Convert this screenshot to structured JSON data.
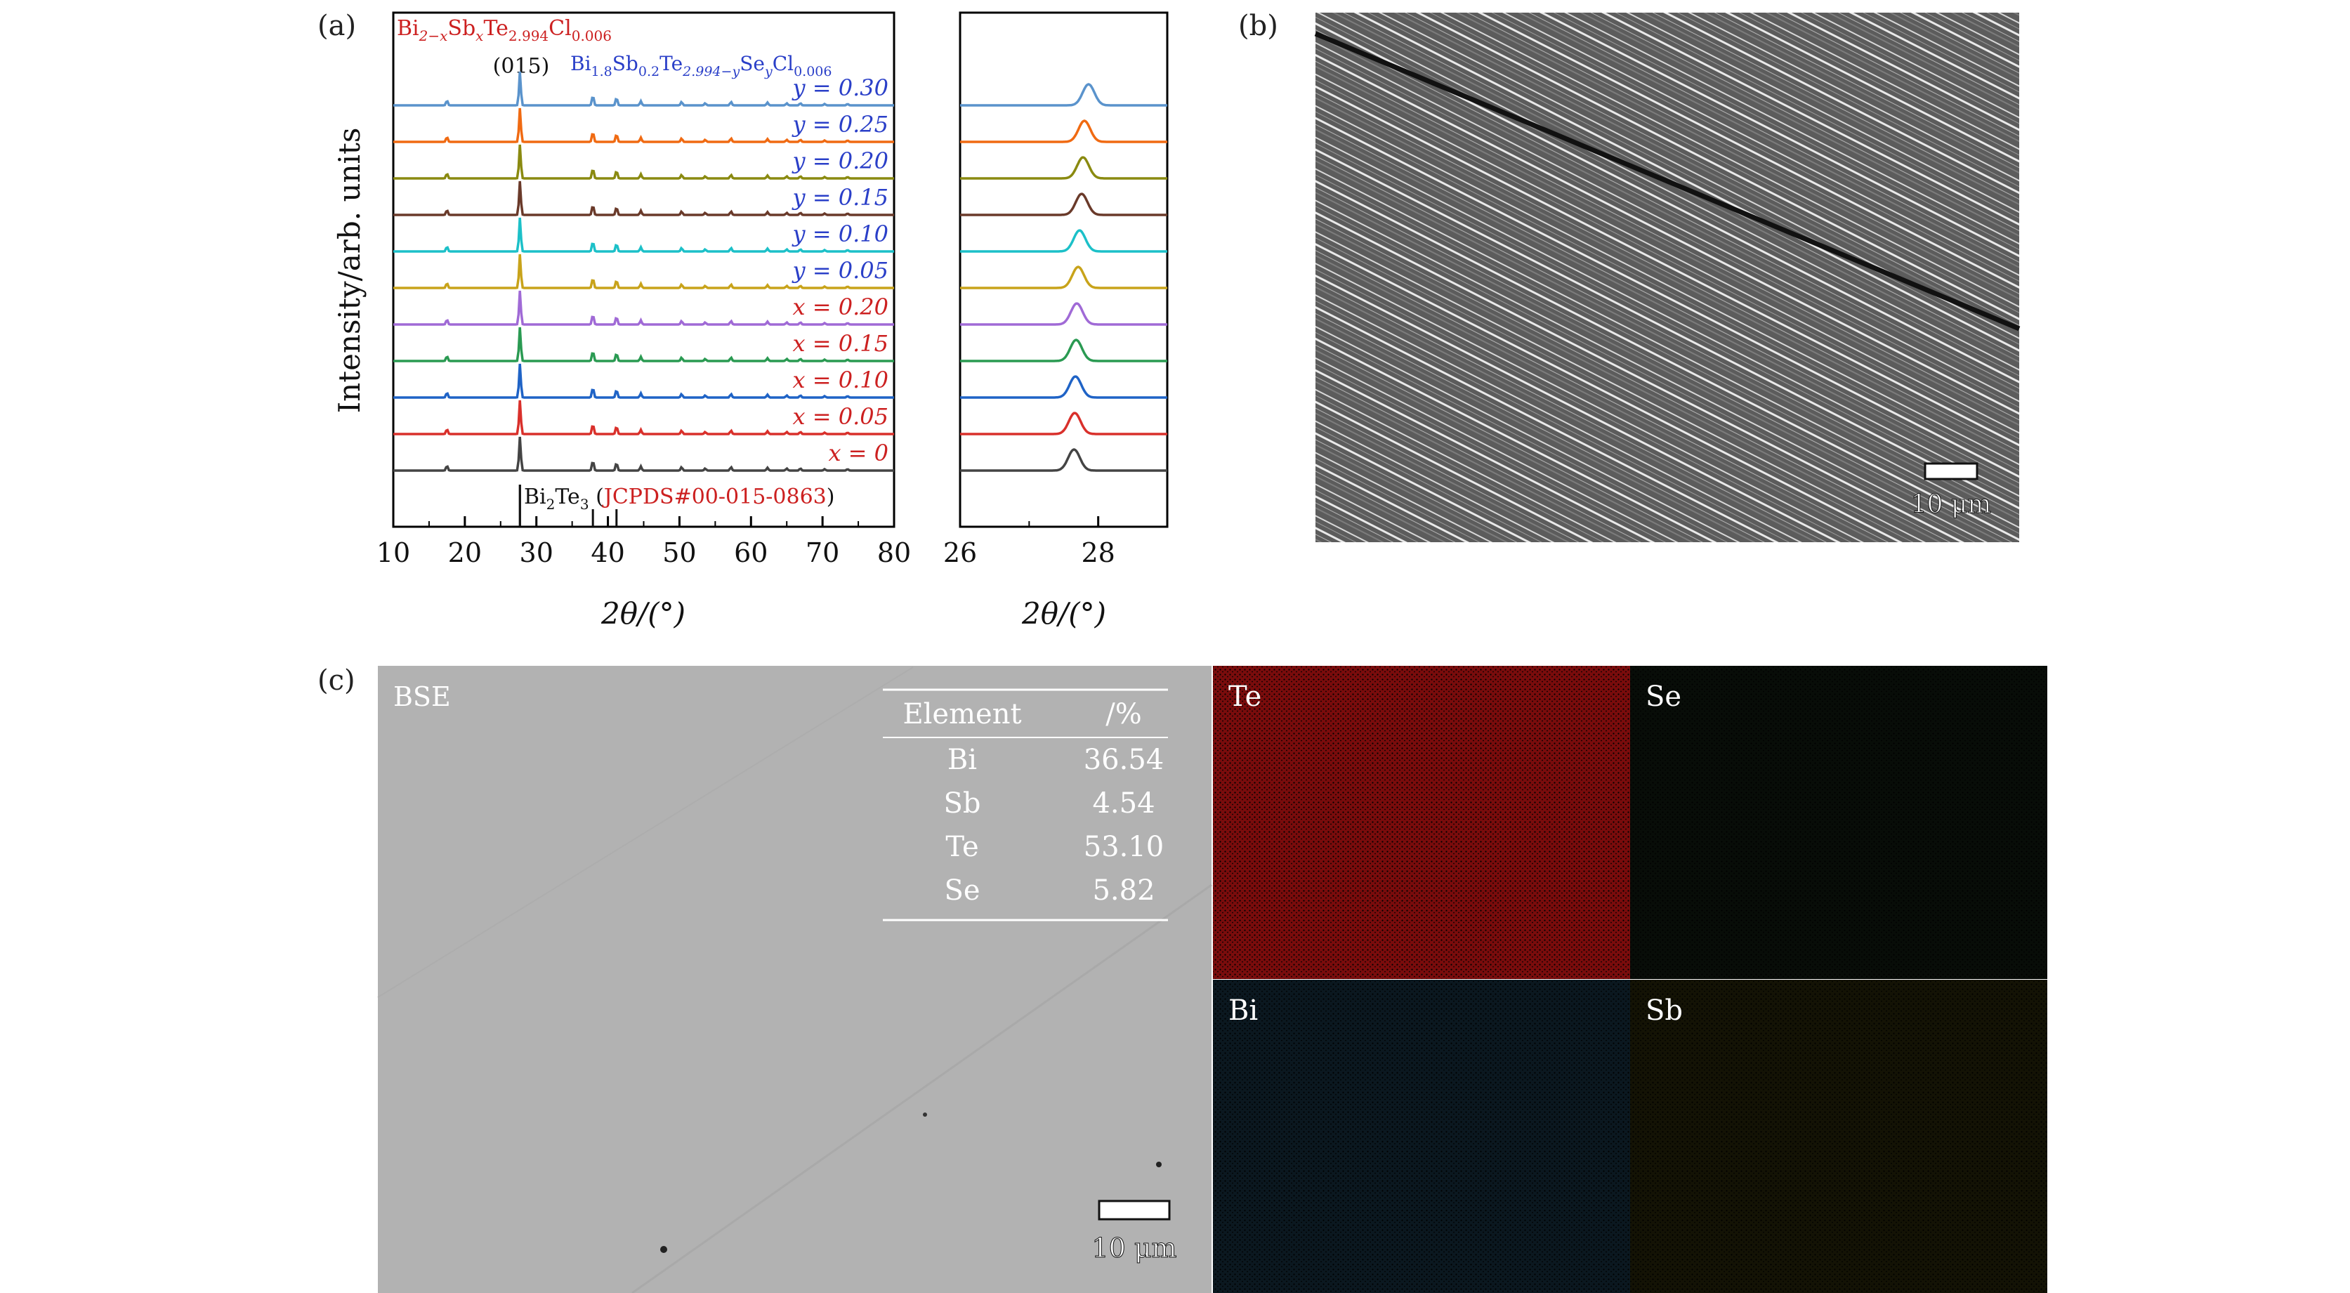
{
  "panel_a": {
    "label": "(a)",
    "ylabel": "Intensity/arb. units",
    "xlabel_left": "2θ/(°)",
    "xlabel_right": "2θ/(°)",
    "series_x_title": {
      "base": "Bi",
      "s1": "2−x",
      "mid": "Sb",
      "s2": "x",
      "mid2": "Te",
      "s3": "2.994",
      "end": "Cl",
      "s4": "0.006"
    },
    "series_y_title": {
      "base": "Bi",
      "s1": "1.8",
      "mid": "Sb",
      "s2": "0.2",
      "mid2": "Te",
      "s3": "2.994−y",
      "mid3": "Se",
      "s4": "y",
      "end": "Cl",
      "s5": "0.006"
    },
    "peak_label": "(015)",
    "ref_label_a": "Bi",
    "ref_label_sub": "2",
    "ref_label_b": "Te",
    "ref_label_sub2": "3",
    "ref_label_c": " (",
    "ref_jcpds": "JCPDS#00-015-0863",
    "ref_label_d": ")",
    "x_ticks_left": [
      "10",
      "20",
      "30",
      "40",
      "50",
      "60",
      "70",
      "80"
    ],
    "x_ticks_right": [
      "26",
      "28"
    ]
  },
  "panel_b": {
    "label": "(b)",
    "scalebar": "10 μm"
  },
  "panel_c": {
    "label": "(c)",
    "bse_label": "BSE",
    "scalebar": "10 μm",
    "table": {
      "head": [
        "Element",
        "/%"
      ],
      "rows": [
        [
          "Bi",
          "36.54"
        ],
        [
          "Sb",
          "4.54"
        ],
        [
          "Te",
          "53.10"
        ],
        [
          "Se",
          "5.82"
        ]
      ]
    },
    "maps": [
      {
        "name": "Te",
        "color": "#c81d1d",
        "bg": "#7a0c0c"
      },
      {
        "name": "Se",
        "color": "#2f7a3a",
        "bg": "#080d08"
      },
      {
        "name": "Bi",
        "color": "#3a9fb0",
        "bg": "#0b1820"
      },
      {
        "name": "Sb",
        "color": "#c7b73a",
        "bg": "#141305"
      }
    ]
  },
  "chart_data": {
    "type": "line",
    "title": "",
    "xlabel": "2θ/(°)",
    "ylabel": "Intensity/arb. units",
    "xlim": [
      10,
      80
    ],
    "xlim_zoom": [
      26,
      29
    ],
    "x_reference_lines": [
      27.7,
      37.9,
      41.2
    ],
    "series": [
      {
        "name": "x = 0",
        "group": "x",
        "color": "#444444",
        "peak_015": 27.65
      },
      {
        "name": "x = 0.05",
        "group": "x",
        "color": "#d9302b",
        "peak_015": 27.66
      },
      {
        "name": "x = 0.10",
        "group": "x",
        "color": "#1f63c6",
        "peak_015": 27.67
      },
      {
        "name": "x = 0.15",
        "group": "x",
        "color": "#2a9a52",
        "peak_015": 27.68
      },
      {
        "name": "x = 0.20",
        "group": "x",
        "color": "#a06ad6",
        "peak_015": 27.69
      },
      {
        "name": "y = 0.05",
        "group": "y",
        "color": "#c8a31a",
        "peak_015": 27.71
      },
      {
        "name": "y = 0.10",
        "group": "y",
        "color": "#1cc0c8",
        "peak_015": 27.73
      },
      {
        "name": "y = 0.15",
        "group": "y",
        "color": "#6a3a2a",
        "peak_015": 27.76
      },
      {
        "name": "y = 0.20",
        "group": "y",
        "color": "#8a8a10",
        "peak_015": 27.78
      },
      {
        "name": "y = 0.25",
        "group": "y",
        "color": "#f06a12",
        "peak_015": 27.8
      },
      {
        "name": "y = 0.30",
        "group": "y",
        "color": "#5a93cc",
        "peak_015": 27.86
      }
    ],
    "label_colors": {
      "x": "#cc2020",
      "y": "#2a3fc8"
    }
  }
}
